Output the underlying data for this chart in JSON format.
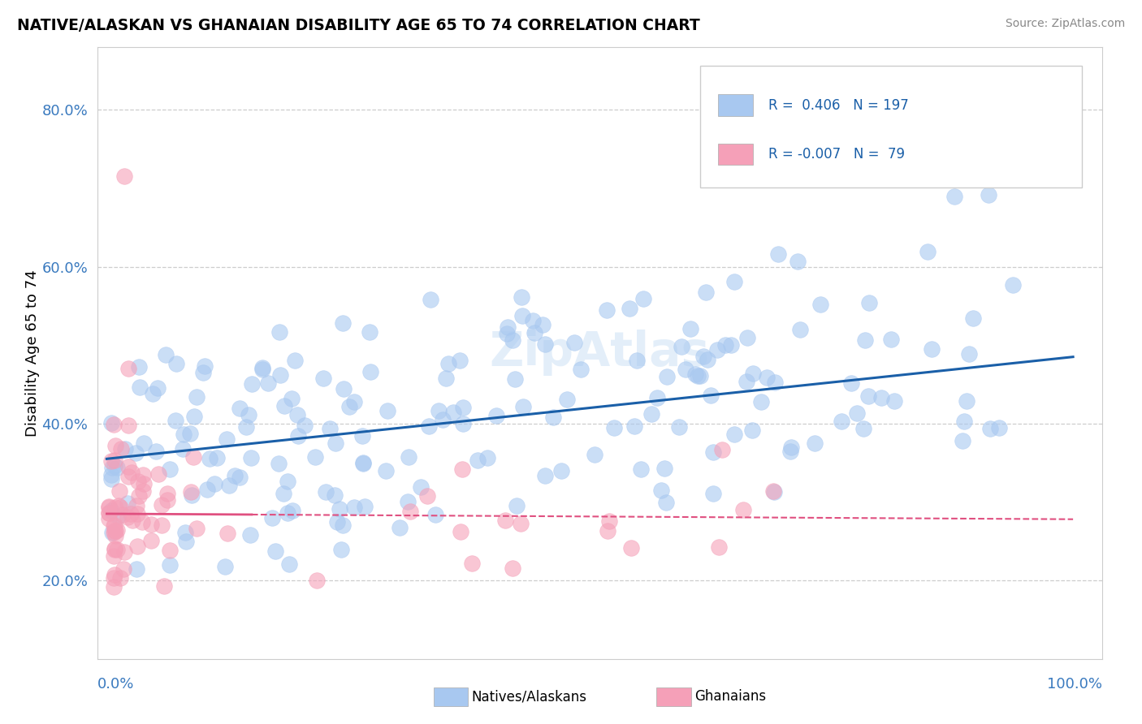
{
  "title": "NATIVE/ALASKAN VS GHANAIAN DISABILITY AGE 65 TO 74 CORRELATION CHART",
  "source": "Source: ZipAtlas.com",
  "ylabel": "Disability Age 65 to 74",
  "ylim": [
    0.1,
    0.88
  ],
  "xlim": [
    -0.01,
    1.03
  ],
  "yticks": [
    0.2,
    0.4,
    0.6,
    0.8
  ],
  "ytick_labels": [
    "20.0%",
    "40.0%",
    "60.0%",
    "80.0%"
  ],
  "blue_color": "#a8c8f0",
  "pink_color": "#f5a0b8",
  "line_blue": "#1a5fa8",
  "line_pink": "#e05080",
  "background": "#ffffff",
  "grid_color": "#c8c8c8",
  "title_color": "#1a5fa8",
  "tick_color": "#3a7abf",
  "watermark_color": "#c8dff5",
  "legend_text_color": "#1a5fa8"
}
